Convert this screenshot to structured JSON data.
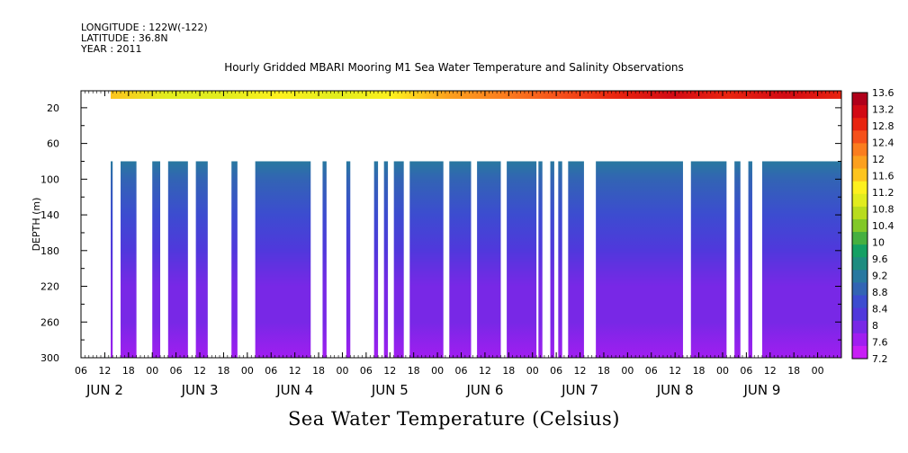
{
  "meta": {
    "longitude": "LONGITUDE : 122W(-122)",
    "latitude": "LATITUDE : 36.8N",
    "year": "YEAR : 2011"
  },
  "chart_data": {
    "type": "heatmap",
    "title": "Hourly Gridded MBARI Mooring M1 Sea Water Temperature and Salinity Observations",
    "xlabel": "Sea Water Temperature (Celsius)",
    "ylabel": "DEPTH (m)",
    "x_unit": "hours since 2011-06-01 00:00",
    "xlim": [
      30,
      222
    ],
    "ylim": [
      300,
      1
    ],
    "y_ticks": [
      20,
      60,
      100,
      140,
      180,
      220,
      260,
      300
    ],
    "x_hour_ticks": [
      "06",
      "12",
      "18",
      "00",
      "06",
      "12",
      "18",
      "00",
      "06",
      "12",
      "18",
      "00",
      "06",
      "12",
      "18",
      "00",
      "06",
      "12",
      "18",
      "00",
      "06",
      "12",
      "18",
      "00",
      "06",
      "12",
      "18",
      "00",
      "06",
      "12",
      "18",
      "00"
    ],
    "x_hour_tick_positions": [
      30,
      36,
      42,
      48,
      54,
      60,
      66,
      72,
      78,
      84,
      90,
      96,
      102,
      108,
      114,
      120,
      126,
      132,
      138,
      144,
      150,
      156,
      162,
      168,
      174,
      180,
      186,
      192,
      198,
      204,
      210,
      216
    ],
    "x_day_labels": [
      {
        "text": "JUN  2",
        "x": 36
      },
      {
        "text": "JUN  3",
        "x": 60
      },
      {
        "text": "JUN  4",
        "x": 84
      },
      {
        "text": "JUN  5",
        "x": 108
      },
      {
        "text": "JUN  6",
        "x": 132
      },
      {
        "text": "JUN  7",
        "x": 156
      },
      {
        "text": "JUN  8",
        "x": 180
      },
      {
        "text": "JUN  9",
        "x": 202
      }
    ],
    "surface_layer": {
      "depth_top": 1,
      "depth_bottom": 10,
      "x_start": 37.5,
      "x_end": 222,
      "temp_range": [
        11.0,
        13.4
      ]
    },
    "deep_layer_depth_top": 80,
    "deep_layer_depth_bottom": 300,
    "deep_segments": [
      [
        37.5,
        38
      ],
      [
        40,
        44
      ],
      [
        48,
        50
      ],
      [
        52,
        57
      ],
      [
        59,
        62
      ],
      [
        68,
        69.5
      ],
      [
        74,
        88
      ],
      [
        91,
        92
      ],
      [
        97,
        98
      ],
      [
        104,
        105
      ],
      [
        106.5,
        107.5
      ],
      [
        109,
        111.5
      ],
      [
        113,
        121.5
      ],
      [
        123,
        128.5
      ],
      [
        130,
        136
      ],
      [
        137.5,
        145
      ],
      [
        145.5,
        146.5
      ],
      [
        148.5,
        149.5
      ],
      [
        150.5,
        151.5
      ],
      [
        153,
        157
      ],
      [
        160,
        182
      ],
      [
        184,
        193
      ],
      [
        195,
        196.5
      ],
      [
        198.5,
        199.5
      ],
      [
        202,
        222
      ]
    ],
    "temperature_profile": {
      "depths": [
        80,
        100,
        140,
        180,
        220,
        260,
        300
      ],
      "temps": [
        9.2,
        8.9,
        8.6,
        8.3,
        8.0,
        7.8,
        7.5
      ]
    },
    "colorbar": {
      "labels": [
        "13.6",
        "13.2",
        "12.8",
        "12.4",
        "12",
        "11.6",
        "11.2",
        "10.8",
        "10.4",
        "10",
        "9.6",
        "9.2",
        "8.8",
        "8.4",
        "8",
        "7.6",
        "7.2"
      ],
      "colors": [
        "#b0001a",
        "#d20a14",
        "#e8240f",
        "#f5501a",
        "#fb7d1e",
        "#fca01e",
        "#fdc41e",
        "#fdf01e",
        "#e1ec1e",
        "#b8dc1e",
        "#82c828",
        "#46b040",
        "#14a064",
        "#1e8c80",
        "#2878a0",
        "#3264b4",
        "#3c4cd0",
        "#5038dc",
        "#7828e6",
        "#a01ef0",
        "#c81ef5"
      ],
      "min": 7.2,
      "max": 13.6
    }
  }
}
